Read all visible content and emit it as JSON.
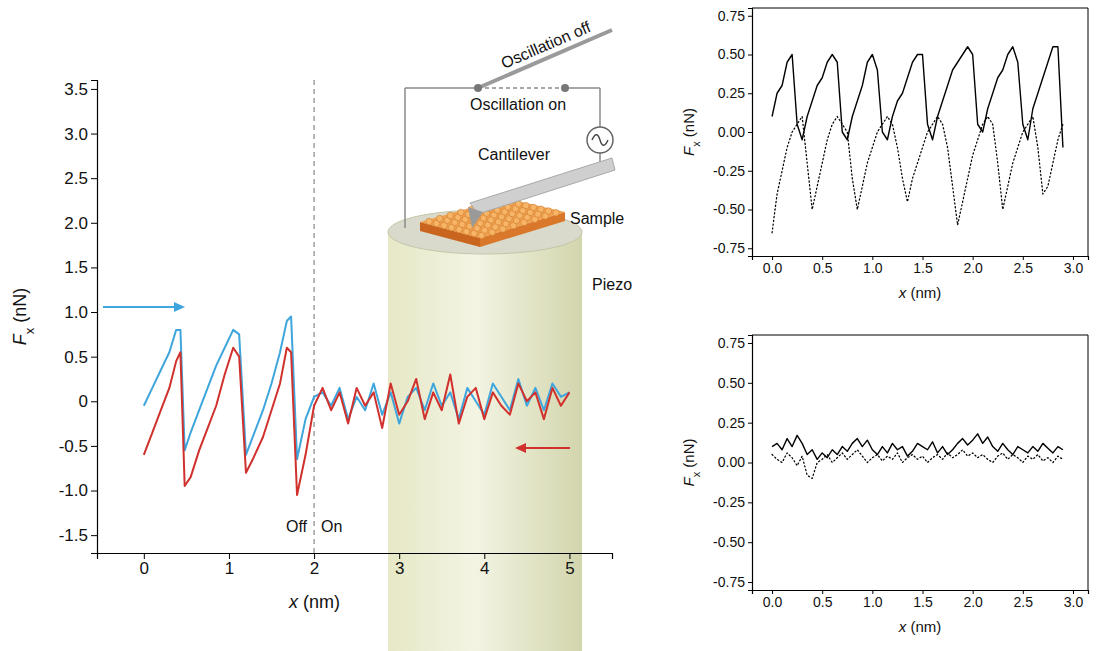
{
  "chart_data": [
    {
      "type": "line",
      "x_label": "x (nm)",
      "y_label": "Fx (nN)",
      "xlim": [
        -0.55,
        5.5
      ],
      "ylim": [
        -1.7,
        3.6
      ],
      "xticks": [
        0,
        1,
        2,
        3,
        4,
        5
      ],
      "yticks": [
        -1.5,
        {
          "value": -1,
          "label": "-1.0"
        },
        -0.5,
        0,
        0.5,
        {
          "value": 1,
          "label": "1.0"
        },
        1.5,
        {
          "value": 2,
          "label": "2.0"
        },
        2.5,
        {
          "value": 3,
          "label": "3.0"
        },
        3.5
      ],
      "vline": 2,
      "annotations": [
        "Off",
        "On",
        "Oscillation off",
        "Oscillation on",
        "Cantilever",
        "Sample",
        "Piezo"
      ],
      "x": [
        0,
        0.1,
        0.2,
        0.3,
        0.38,
        0.43,
        0.48,
        0.55,
        0.65,
        0.75,
        0.85,
        0.95,
        1.05,
        1.12,
        1.2,
        1.28,
        1.4,
        1.5,
        1.6,
        1.68,
        1.73,
        1.8,
        1.9,
        2.0,
        2.1,
        2.2,
        2.3,
        2.4,
        2.5,
        2.6,
        2.7,
        2.8,
        2.9,
        3.0,
        3.1,
        3.2,
        3.3,
        3.4,
        3.5,
        3.6,
        3.7,
        3.8,
        3.9,
        4.0,
        4.1,
        4.2,
        4.3,
        4.4,
        4.5,
        4.6,
        4.7,
        4.8,
        4.9,
        5.0
      ],
      "series": [
        {
          "color": "#3ea6dc",
          "line_style": "solid",
          "values": [
            -0.05,
            0.15,
            0.35,
            0.55,
            0.8,
            0.8,
            -0.55,
            -0.35,
            -0.1,
            0.15,
            0.4,
            0.6,
            0.8,
            0.75,
            -0.6,
            -0.4,
            -0.1,
            0.2,
            0.55,
            0.9,
            0.95,
            -0.65,
            -0.2,
            0.05,
            0.1,
            -0.05,
            0.15,
            -0.2,
            0.05,
            -0.1,
            0.2,
            -0.15,
            0.1,
            -0.25,
            0.05,
            0.15,
            -0.1,
            0.2,
            -0.05,
            0.1,
            -0.2,
            0.15,
            0.0,
            -0.15,
            0.2,
            0.05,
            -0.1,
            0.25,
            -0.05,
            0.15,
            -0.1,
            0.2,
            0.05,
            0.1
          ]
        },
        {
          "color": "#d0312d",
          "line_style": "solid",
          "values": [
            -0.6,
            -0.35,
            -0.1,
            0.15,
            0.45,
            0.55,
            -0.95,
            -0.85,
            -0.55,
            -0.3,
            -0.05,
            0.3,
            0.6,
            0.5,
            -0.8,
            -0.65,
            -0.4,
            -0.1,
            0.2,
            0.6,
            0.55,
            -1.05,
            -0.6,
            -0.05,
            0.15,
            -0.1,
            0.1,
            -0.25,
            0.15,
            -0.05,
            0.1,
            -0.3,
            0.2,
            -0.15,
            0.0,
            0.25,
            -0.2,
            0.1,
            -0.1,
            0.3,
            -0.25,
            0.05,
            0.15,
            -0.2,
            0.1,
            -0.05,
            -0.15,
            0.2,
            0.0,
            0.1,
            -0.2,
            0.15,
            -0.05,
            0.1
          ]
        }
      ]
    },
    {
      "type": "line",
      "x_label": "x (nm)",
      "y_label": "Fx (nN)",
      "xlim": [
        -0.2,
        3.15
      ],
      "ylim": [
        -0.8,
        0.8
      ],
      "xticks": [
        {
          "value": 0,
          "label": "0.0"
        },
        0.5,
        {
          "value": 1,
          "label": "1.0"
        },
        1.5,
        {
          "value": 2,
          "label": "2.0"
        },
        2.5,
        {
          "value": 3,
          "label": "3.0"
        }
      ],
      "yticks": [
        -0.75,
        {
          "value": -0.5,
          "label": "-0.50"
        },
        -0.25,
        {
          "value": 0,
          "label": "0.00"
        },
        0.25,
        {
          "value": 0.5,
          "label": "0.50"
        },
        0.75
      ],
      "x": [
        0,
        0.05,
        0.1,
        0.15,
        0.2,
        0.25,
        0.3,
        0.35,
        0.4,
        0.45,
        0.5,
        0.55,
        0.6,
        0.65,
        0.7,
        0.75,
        0.8,
        0.85,
        0.9,
        0.95,
        1.0,
        1.05,
        1.1,
        1.15,
        1.2,
        1.25,
        1.3,
        1.35,
        1.4,
        1.45,
        1.5,
        1.55,
        1.6,
        1.65,
        1.7,
        1.75,
        1.8,
        1.85,
        1.9,
        1.95,
        2.0,
        2.05,
        2.1,
        2.15,
        2.2,
        2.25,
        2.3,
        2.35,
        2.4,
        2.45,
        2.5,
        2.55,
        2.6,
        2.65,
        2.7,
        2.75,
        2.8,
        2.85,
        2.9
      ],
      "series": [
        {
          "color": "#000000",
          "line_style": "solid",
          "values": [
            0.1,
            0.25,
            0.3,
            0.45,
            0.5,
            0.05,
            -0.05,
            0.1,
            0.2,
            0.3,
            0.35,
            0.45,
            0.5,
            0.45,
            0.0,
            -0.05,
            0.1,
            0.2,
            0.3,
            0.45,
            0.5,
            0.4,
            0.0,
            -0.05,
            0.1,
            0.2,
            0.25,
            0.35,
            0.45,
            0.5,
            0.5,
            0.05,
            -0.05,
            0.1,
            0.2,
            0.3,
            0.4,
            0.45,
            0.5,
            0.55,
            0.5,
            0.05,
            0.0,
            0.15,
            0.25,
            0.35,
            0.4,
            0.5,
            0.55,
            0.45,
            0.05,
            -0.05,
            0.15,
            0.25,
            0.35,
            0.45,
            0.55,
            0.55,
            -0.1
          ]
        },
        {
          "color": "#000000",
          "line_style": "dotted",
          "values": [
            -0.65,
            -0.4,
            -0.25,
            -0.1,
            0.0,
            0.05,
            0.1,
            -0.2,
            -0.5,
            -0.35,
            -0.2,
            -0.05,
            0.05,
            0.1,
            0.05,
            0.0,
            -0.3,
            -0.5,
            -0.35,
            -0.2,
            -0.1,
            0.0,
            0.05,
            0.1,
            0.05,
            -0.1,
            -0.3,
            -0.45,
            -0.3,
            -0.2,
            -0.1,
            0.0,
            0.05,
            0.1,
            0.05,
            -0.1,
            -0.35,
            -0.6,
            -0.45,
            -0.3,
            -0.15,
            -0.05,
            0.05,
            0.1,
            0.05,
            -0.2,
            -0.5,
            -0.35,
            -0.2,
            -0.1,
            0.0,
            0.05,
            0.1,
            -0.1,
            -0.4,
            -0.35,
            -0.2,
            -0.05,
            0.05
          ]
        }
      ]
    },
    {
      "type": "line",
      "x_label": "x (nm)",
      "y_label": "Fx (nN)",
      "xlim": [
        -0.2,
        3.15
      ],
      "ylim": [
        -0.8,
        0.8
      ],
      "xticks": [
        {
          "value": 0,
          "label": "0.0"
        },
        0.5,
        {
          "value": 1,
          "label": "1.0"
        },
        1.5,
        {
          "value": 2,
          "label": "2.0"
        },
        2.5,
        {
          "value": 3,
          "label": "3.0"
        }
      ],
      "yticks": [
        -0.75,
        {
          "value": -0.5,
          "label": "-0.50"
        },
        -0.25,
        {
          "value": 0,
          "label": "0.00"
        },
        0.25,
        {
          "value": 0.5,
          "label": "0.50"
        },
        0.75
      ],
      "x": [
        0,
        0.05,
        0.1,
        0.15,
        0.2,
        0.25,
        0.3,
        0.35,
        0.4,
        0.45,
        0.5,
        0.55,
        0.6,
        0.65,
        0.7,
        0.75,
        0.8,
        0.85,
        0.9,
        0.95,
        1.0,
        1.05,
        1.1,
        1.15,
        1.2,
        1.25,
        1.3,
        1.35,
        1.4,
        1.45,
        1.5,
        1.55,
        1.6,
        1.65,
        1.7,
        1.75,
        1.8,
        1.85,
        1.9,
        1.95,
        2.0,
        2.05,
        2.1,
        2.15,
        2.2,
        2.25,
        2.3,
        2.35,
        2.4,
        2.45,
        2.5,
        2.55,
        2.6,
        2.65,
        2.7,
        2.75,
        2.8,
        2.85,
        2.9
      ],
      "series": [
        {
          "color": "#000000",
          "line_style": "solid",
          "values": [
            0.1,
            0.12,
            0.08,
            0.15,
            0.1,
            0.17,
            0.12,
            0.05,
            0.08,
            0.02,
            0.06,
            0.03,
            0.08,
            0.05,
            0.1,
            0.07,
            0.12,
            0.15,
            0.1,
            0.14,
            0.08,
            0.05,
            0.1,
            0.06,
            0.12,
            0.08,
            0.1,
            0.04,
            0.07,
            0.12,
            0.1,
            0.08,
            0.13,
            0.06,
            0.1,
            0.05,
            0.08,
            0.12,
            0.15,
            0.11,
            0.14,
            0.18,
            0.12,
            0.16,
            0.1,
            0.07,
            0.12,
            0.08,
            0.05,
            0.1,
            0.08,
            0.06,
            0.1,
            0.07,
            0.12,
            0.09,
            0.06,
            0.1,
            0.08
          ]
        },
        {
          "color": "#000000",
          "line_style": "dotted",
          "values": [
            0.05,
            0.02,
            0.0,
            0.06,
            0.03,
            -0.02,
            0.04,
            -0.08,
            -0.1,
            0.0,
            0.02,
            0.05,
            0.0,
            0.03,
            0.06,
            0.02,
            0.05,
            0.08,
            0.04,
            0.0,
            0.03,
            0.05,
            0.01,
            0.04,
            0.02,
            0.06,
            0.0,
            0.03,
            0.05,
            0.02,
            0.04,
            0.0,
            0.03,
            0.05,
            0.02,
            0.06,
            0.03,
            0.05,
            0.08,
            0.04,
            0.06,
            0.03,
            0.05,
            0.02,
            0.0,
            0.04,
            0.06,
            0.02,
            0.05,
            0.03,
            0.0,
            0.04,
            0.02,
            0.05,
            0.01,
            0.03,
            0.0,
            0.04,
            0.02
          ]
        }
      ]
    }
  ]
}
